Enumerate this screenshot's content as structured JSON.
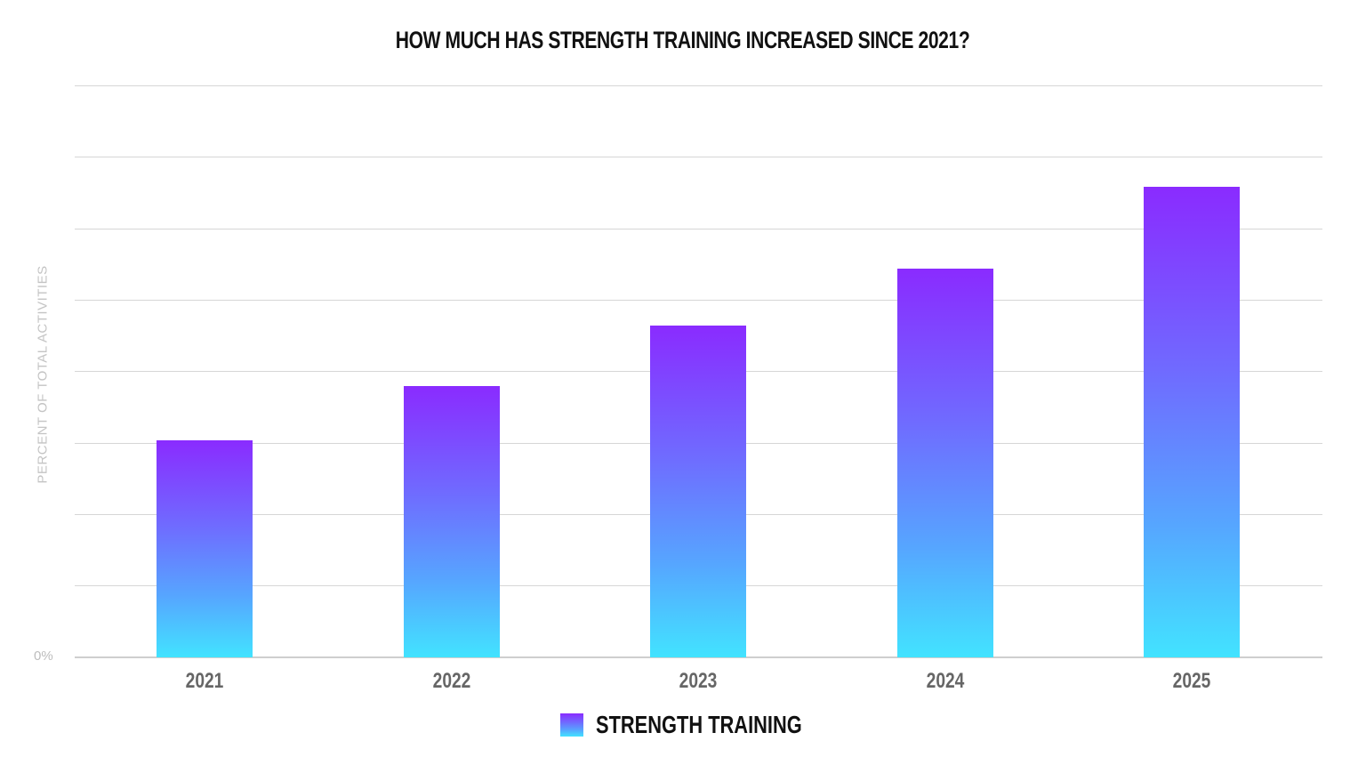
{
  "chart_data": {
    "type": "bar",
    "title": "HOW MUCH HAS STRENGTH TRAINING INCREASED SINCE 2021?",
    "xlabel": "",
    "ylabel": "PERCENT OF TOTAL ACTIVITIES",
    "y_tick_labels": [
      "0%"
    ],
    "y_units": "relative (gridline units; only 0% labeled)",
    "ylim": [
      0,
      8
    ],
    "gridlines": 8,
    "grid": true,
    "legend_position": "bottom-center",
    "categories": [
      "2021",
      "2022",
      "2023",
      "2024",
      "2025"
    ],
    "series": [
      {
        "name": "STRENGTH TRAINING",
        "values": [
          3.03,
          3.79,
          4.64,
          5.44,
          6.58
        ]
      }
    ],
    "colors": {
      "gradient_top": "#8a2bff",
      "gradient_bottom": "#42e3ff"
    }
  }
}
